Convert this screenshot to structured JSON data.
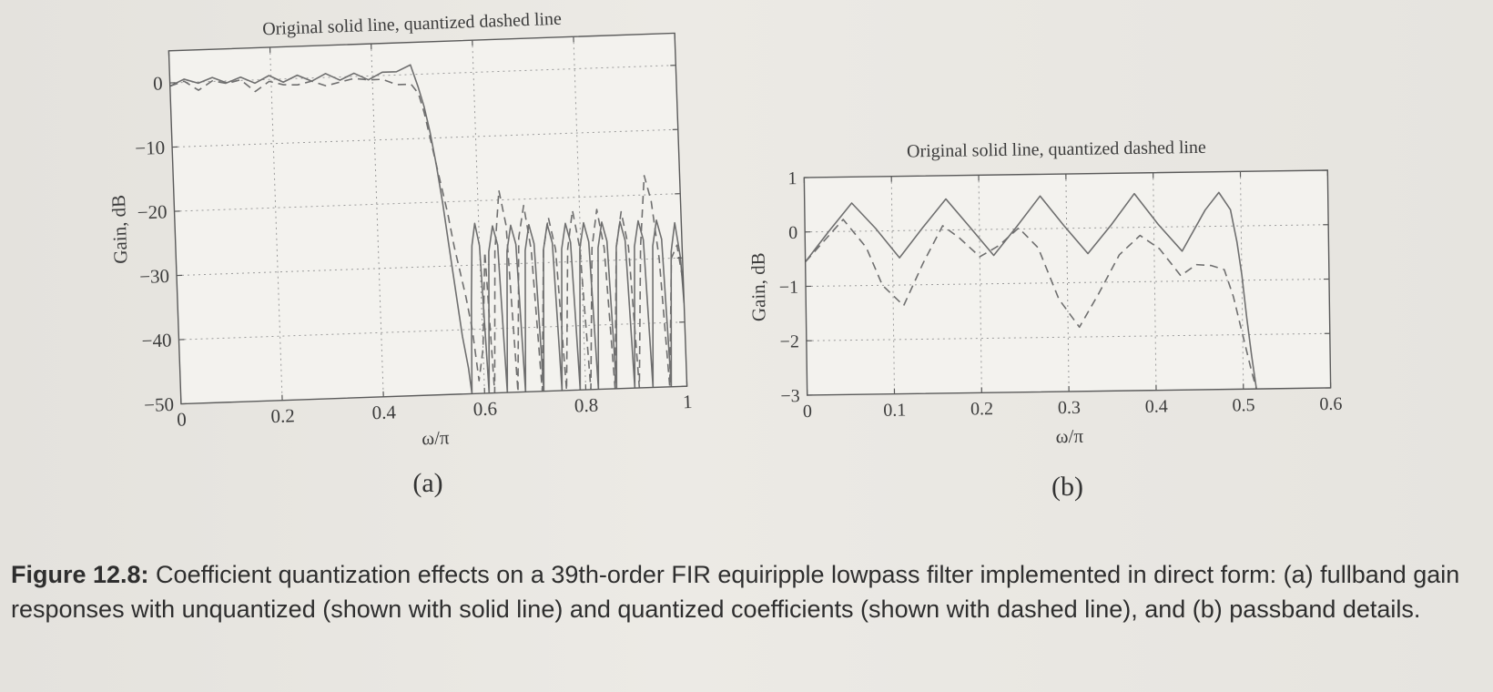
{
  "chart_data": [
    {
      "type": "line",
      "panel_label": "(a)",
      "title": "Original  solid line, quantized  dashed line",
      "xlabel": "ω/π",
      "ylabel": "Gain, dB",
      "xlim": [
        0,
        1
      ],
      "ylim": [
        -50,
        5
      ],
      "xticks": [
        0,
        0.2,
        0.4,
        0.6,
        0.8,
        1
      ],
      "xtick_labels": [
        "0",
        "0.2",
        "0.4",
        "0.6",
        "0.8",
        "1"
      ],
      "yticks": [
        0,
        -10,
        -20,
        -30,
        -40,
        -50
      ],
      "ytick_labels": [
        "0",
        "−10",
        "−20",
        "−30",
        "−40",
        "−50"
      ],
      "grid": true,
      "series": [
        {
          "style": "solid",
          "x": [
            0,
            0.028,
            0.056,
            0.084,
            0.112,
            0.14,
            0.168,
            0.196,
            0.224,
            0.252,
            0.28,
            0.308,
            0.336,
            0.364,
            0.392,
            0.42,
            0.448,
            0.476,
            0.49,
            0.5,
            0.51,
            0.52,
            0.53,
            0.54,
            0.55,
            0.56,
            0.57,
            0.575,
            0.58,
            0.585,
            0.592,
            0.6,
            0.609,
            0.618,
            0.627,
            0.636,
            0.645,
            0.654,
            0.663,
            0.672,
            0.681,
            0.69,
            0.699,
            0.708,
            0.717,
            0.726,
            0.735,
            0.744,
            0.753,
            0.762,
            0.771,
            0.78,
            0.789,
            0.798,
            0.807,
            0.816,
            0.825,
            0.834,
            0.843,
            0.852,
            0.861,
            0.87,
            0.879,
            0.888,
            0.897,
            0.906,
            0.915,
            0.924,
            0.933,
            0.942,
            0.951,
            0.96,
            0.969,
            0.978,
            0.987,
            0.996,
            1.0
          ],
          "y": [
            -0.5,
            0.5,
            -0.2,
            0.6,
            -0.3,
            0.5,
            -0.5,
            0.6,
            -0.5,
            0.5,
            -0.5,
            0.6,
            -0.5,
            0.5,
            -0.6,
            0.5,
            0.5,
            1.5,
            -2,
            -5,
            -9,
            -14,
            -20,
            -27,
            -34,
            -41,
            -46,
            -50,
            -36,
            -27,
            -23.5,
            -27,
            -50,
            -28,
            -24,
            -27,
            -50,
            -28,
            -24,
            -27,
            -50,
            -28,
            -24,
            -27,
            -50,
            -28,
            -24,
            -27,
            -50,
            -28,
            -24,
            -27,
            -50,
            -28,
            -24,
            -27,
            -50,
            -28,
            -24,
            -27,
            -50,
            -28,
            -24,
            -27,
            -50,
            -28,
            -24,
            -27,
            -50,
            -28,
            -24,
            -27,
            -50,
            -29,
            -24.5,
            -30,
            -37
          ]
        },
        {
          "style": "dashed",
          "x": [
            0,
            0.028,
            0.056,
            0.084,
            0.112,
            0.14,
            0.168,
            0.196,
            0.224,
            0.252,
            0.28,
            0.308,
            0.336,
            0.364,
            0.392,
            0.42,
            0.448,
            0.476,
            0.49,
            0.5,
            0.51,
            0.52,
            0.53,
            0.54,
            0.55,
            0.56,
            0.57,
            0.58,
            0.59,
            0.6,
            0.61,
            0.62,
            0.63,
            0.642,
            0.654,
            0.666,
            0.678,
            0.69,
            0.702,
            0.714,
            0.726,
            0.738,
            0.75,
            0.762,
            0.774,
            0.786,
            0.798,
            0.81,
            0.822,
            0.834,
            0.846,
            0.858,
            0.87,
            0.882,
            0.894,
            0.906,
            0.918,
            0.93,
            0.942,
            0.954,
            0.966,
            0.978,
            0.99,
            1.0
          ],
          "y": [
            -0.5,
            0.2,
            -1.3,
            0.1,
            -0.4,
            0.1,
            -1.8,
            -0.3,
            -0.9,
            -1.0,
            -0.5,
            -1.3,
            -0.8,
            -0.3,
            -0.6,
            -0.6,
            -1.5,
            -1.5,
            -3,
            -6,
            -10,
            -14,
            -18,
            -22,
            -27,
            -31,
            -35,
            -40,
            -48,
            -43,
            -28,
            -50,
            -28,
            -18.5,
            -24,
            -50,
            -26,
            -21,
            -28,
            -50,
            -28,
            -23,
            -28,
            -50,
            -28,
            -22,
            -28,
            -50,
            -28,
            -22,
            -28,
            -50,
            -28,
            -22.5,
            -28,
            -50,
            -28,
            -17,
            -21,
            -30,
            -50,
            -30,
            -28,
            -34
          ]
        }
      ]
    },
    {
      "type": "line",
      "panel_label": "(b)",
      "title": "Original  solid line, quantized  dashed line",
      "xlabel": "ω/π",
      "ylabel": "Gain, dB",
      "xlim": [
        0,
        0.6
      ],
      "ylim": [
        -3,
        1
      ],
      "xticks": [
        0,
        0.1,
        0.2,
        0.3,
        0.4,
        0.5,
        0.6
      ],
      "xtick_labels": [
        "0",
        "0.1",
        "0.2",
        "0.3",
        "0.4",
        "0.5",
        "0.6"
      ],
      "yticks": [
        1,
        0,
        -1,
        -2,
        -3
      ],
      "ytick_labels": [
        "1",
        "0",
        "−1",
        "−2",
        "−3"
      ],
      "grid": true,
      "series": [
        {
          "style": "solid",
          "x": [
            0,
            0.027,
            0.054,
            0.081,
            0.108,
            0.135,
            0.162,
            0.189,
            0.216,
            0.243,
            0.27,
            0.297,
            0.324,
            0.351,
            0.378,
            0.405,
            0.432,
            0.459,
            0.475,
            0.488,
            0.495,
            0.5,
            0.505,
            0.51,
            0.515
          ],
          "y": [
            -0.55,
            0.0,
            0.52,
            0.05,
            -0.5,
            0.05,
            0.57,
            0.05,
            -0.48,
            0.05,
            0.6,
            0.05,
            -0.47,
            0.05,
            0.62,
            0.05,
            -0.45,
            0.3,
            0.62,
            0.3,
            -0.3,
            -0.9,
            -1.7,
            -2.4,
            -3.0
          ]
        },
        {
          "style": "dashed",
          "x": [
            0,
            0.02,
            0.044,
            0.07,
            0.088,
            0.112,
            0.135,
            0.158,
            0.177,
            0.2,
            0.222,
            0.245,
            0.267,
            0.29,
            0.313,
            0.336,
            0.36,
            0.384,
            0.406,
            0.43,
            0.448,
            0.465,
            0.48,
            0.49,
            0.5,
            0.51,
            0.515
          ],
          "y": [
            -0.55,
            -0.2,
            0.22,
            -0.3,
            -1.0,
            -1.38,
            -0.6,
            0.08,
            -0.15,
            -0.5,
            -0.3,
            0.02,
            -0.35,
            -1.3,
            -1.82,
            -1.2,
            -0.5,
            -0.15,
            -0.4,
            -0.9,
            -0.7,
            -0.72,
            -0.8,
            -1.3,
            -2.0,
            -2.7,
            -3.0
          ]
        }
      ]
    }
  ],
  "caption": {
    "lead": "Figure 12.8:",
    "text": " Coefficient quantization effects on a 39th-order FIR equiripple lowpass filter implemented in direct form: (a) fullband gain responses with unquantized (shown with solid line) and quantized coefficients (shown with dashed line), and (b) passband details."
  }
}
